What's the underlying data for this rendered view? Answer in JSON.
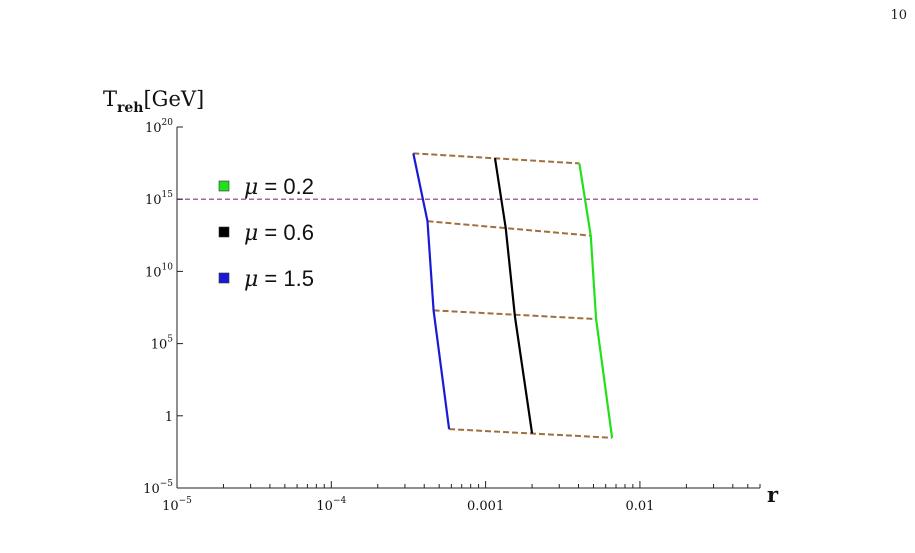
{
  "page": {
    "number": "10"
  },
  "chart_data": {
    "type": "line",
    "xlabel": "r",
    "ylabel": "T",
    "ylabel_sub": "reh",
    "ylabel_unit": "[GeV]",
    "x_scale": "log",
    "y_scale": "log",
    "xlim": [
      1e-05,
      0.06
    ],
    "ylim": [
      1e-05,
      1e+20
    ],
    "x_ticks": [
      {
        "value": 1e-05,
        "base": "10",
        "exp": "−5"
      },
      {
        "value": 0.0001,
        "base": "10",
        "exp": "−4"
      },
      {
        "value": 0.001,
        "base": "0.001",
        "exp": ""
      },
      {
        "value": 0.01,
        "base": "0.01",
        "exp": ""
      }
    ],
    "y_ticks": [
      {
        "value": 1e-05,
        "base": "10",
        "exp": "−5"
      },
      {
        "value": 1,
        "base": "1",
        "exp": ""
      },
      {
        "value": 100000,
        "base": "10",
        "exp": "5"
      },
      {
        "value": 10000000000.0,
        "base": "10",
        "exp": "10"
      },
      {
        "value": 1000000000000000.0,
        "base": "10",
        "exp": "15"
      },
      {
        "value": 1e+20,
        "base": "10",
        "exp": "20"
      }
    ],
    "grid": false,
    "legend_placement": "top-left",
    "series": [
      {
        "name": "μ = 0.2",
        "mu": "0.2",
        "color": "#22e01a",
        "style": "solid",
        "x": [
          0.00405,
          0.0048,
          0.0052,
          0.0066
        ],
        "y": [
          3e+17,
          3000000000000.0,
          5000000.0,
          0.03
        ]
      },
      {
        "name": "μ = 0.6",
        "mu": "0.6",
        "color": "#000000",
        "style": "solid",
        "x": [
          0.00115,
          0.00135,
          0.00155,
          0.002
        ],
        "y": [
          7e+17,
          10000000000000.0,
          7000000.0,
          0.06
        ]
      },
      {
        "name": "μ = 1.5",
        "mu": "1.5",
        "color": "#1a1ad6",
        "style": "solid",
        "x": [
          0.00034,
          0.00042,
          0.00046,
          0.00058
        ],
        "y": [
          1.5e+18,
          30000000000000.0,
          20000000.0,
          0.12
        ]
      }
    ],
    "reference_line": {
      "y": 1000000000000000.0,
      "color": "#8b2b8b",
      "style": "dashed"
    },
    "connector_lines": {
      "color": "#a0703c",
      "style": "dashed",
      "x": [
        0.00034,
        0.00405,
        0.00042,
        0.0048,
        0.00046,
        0.0052,
        0.00058,
        0.0066
      ],
      "y": [
        1.5e+18,
        3e+17,
        30000000000000.0,
        3000000000000.0,
        20000000.0,
        5000000.0,
        0.12,
        0.03
      ]
    }
  }
}
